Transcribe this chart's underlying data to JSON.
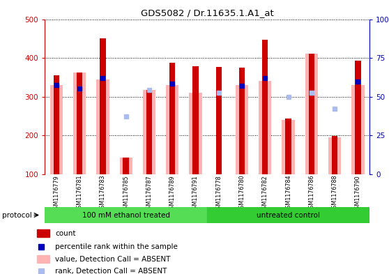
{
  "title": "GDS5082 / Dr.11635.1.A1_at",
  "samples": [
    "GSM1176779",
    "GSM1176781",
    "GSM1176783",
    "GSM1176785",
    "GSM1176787",
    "GSM1176789",
    "GSM1176791",
    "GSM1176778",
    "GSM1176780",
    "GSM1176782",
    "GSM1176784",
    "GSM1176786",
    "GSM1176788",
    "GSM1176790"
  ],
  "group1_count": 7,
  "group1_label": "100 mM ethanol treated",
  "group2_label": "untreated control",
  "red_bars": [
    355,
    362,
    450,
    143,
    317,
    388,
    378,
    376,
    375,
    447,
    244,
    410,
    199,
    392
  ],
  "pink_bars": [
    330,
    362,
    345,
    143,
    317,
    330,
    310,
    100,
    330,
    340,
    240,
    410,
    195,
    330
  ],
  "blue_sq": [
    330,
    320,
    347,
    null,
    null,
    333,
    null,
    null,
    328,
    347,
    null,
    null,
    null,
    338
  ],
  "light_blue_sq": [
    null,
    320,
    null,
    249,
    317,
    null,
    null,
    310,
    null,
    null,
    300,
    310,
    268,
    null
  ],
  "ylim_left": [
    100,
    500
  ],
  "ylim_right": [
    0,
    100
  ],
  "yticks_left": [
    100,
    200,
    300,
    400,
    500
  ],
  "yticks_right": [
    0,
    25,
    50,
    75,
    100
  ],
  "left_color": "#cc0000",
  "right_color": "#0000bb",
  "red_color": "#cc0000",
  "blue_color": "#0000bb",
  "pink_color": "#ffb3b3",
  "lightblue_color": "#aabbee",
  "green1_color": "#55dd55",
  "green2_color": "#33cc33",
  "red_bar_width": 0.25,
  "pink_bar_width": 0.55,
  "plot_bg": "#ffffff"
}
